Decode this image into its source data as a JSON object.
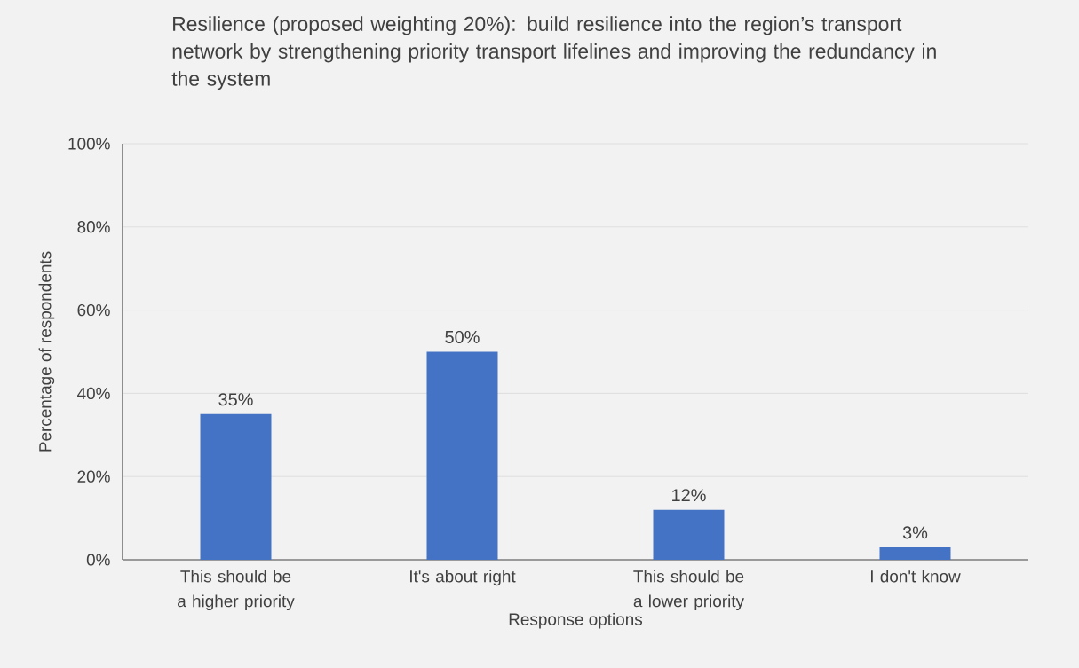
{
  "chart_data": {
    "type": "bar",
    "title": "Resilience (proposed weighting 20%): build resilience into the region’s transport network by strengthening priority transport lifelines and improving the redundancy in the system",
    "xlabel": "Response options",
    "ylabel": "Percentage of respondents",
    "categories": [
      "This should be a higher priority",
      "It's about right",
      "This should be a lower priority",
      "I don't know"
    ],
    "values": [
      35,
      50,
      12,
      3
    ],
    "value_labels": [
      "35%",
      "50%",
      "12%",
      "3%"
    ],
    "color": "#4472c4",
    "ylim": [
      0,
      100
    ],
    "yticks": [
      {
        "value": 0,
        "label": "0%"
      },
      {
        "value": 20,
        "label": "20%"
      },
      {
        "value": 40,
        "label": "40%"
      },
      {
        "value": 60,
        "label": "60%"
      },
      {
        "value": 80,
        "label": "80%"
      },
      {
        "value": 100,
        "label": "100%"
      }
    ],
    "grid": "y"
  }
}
